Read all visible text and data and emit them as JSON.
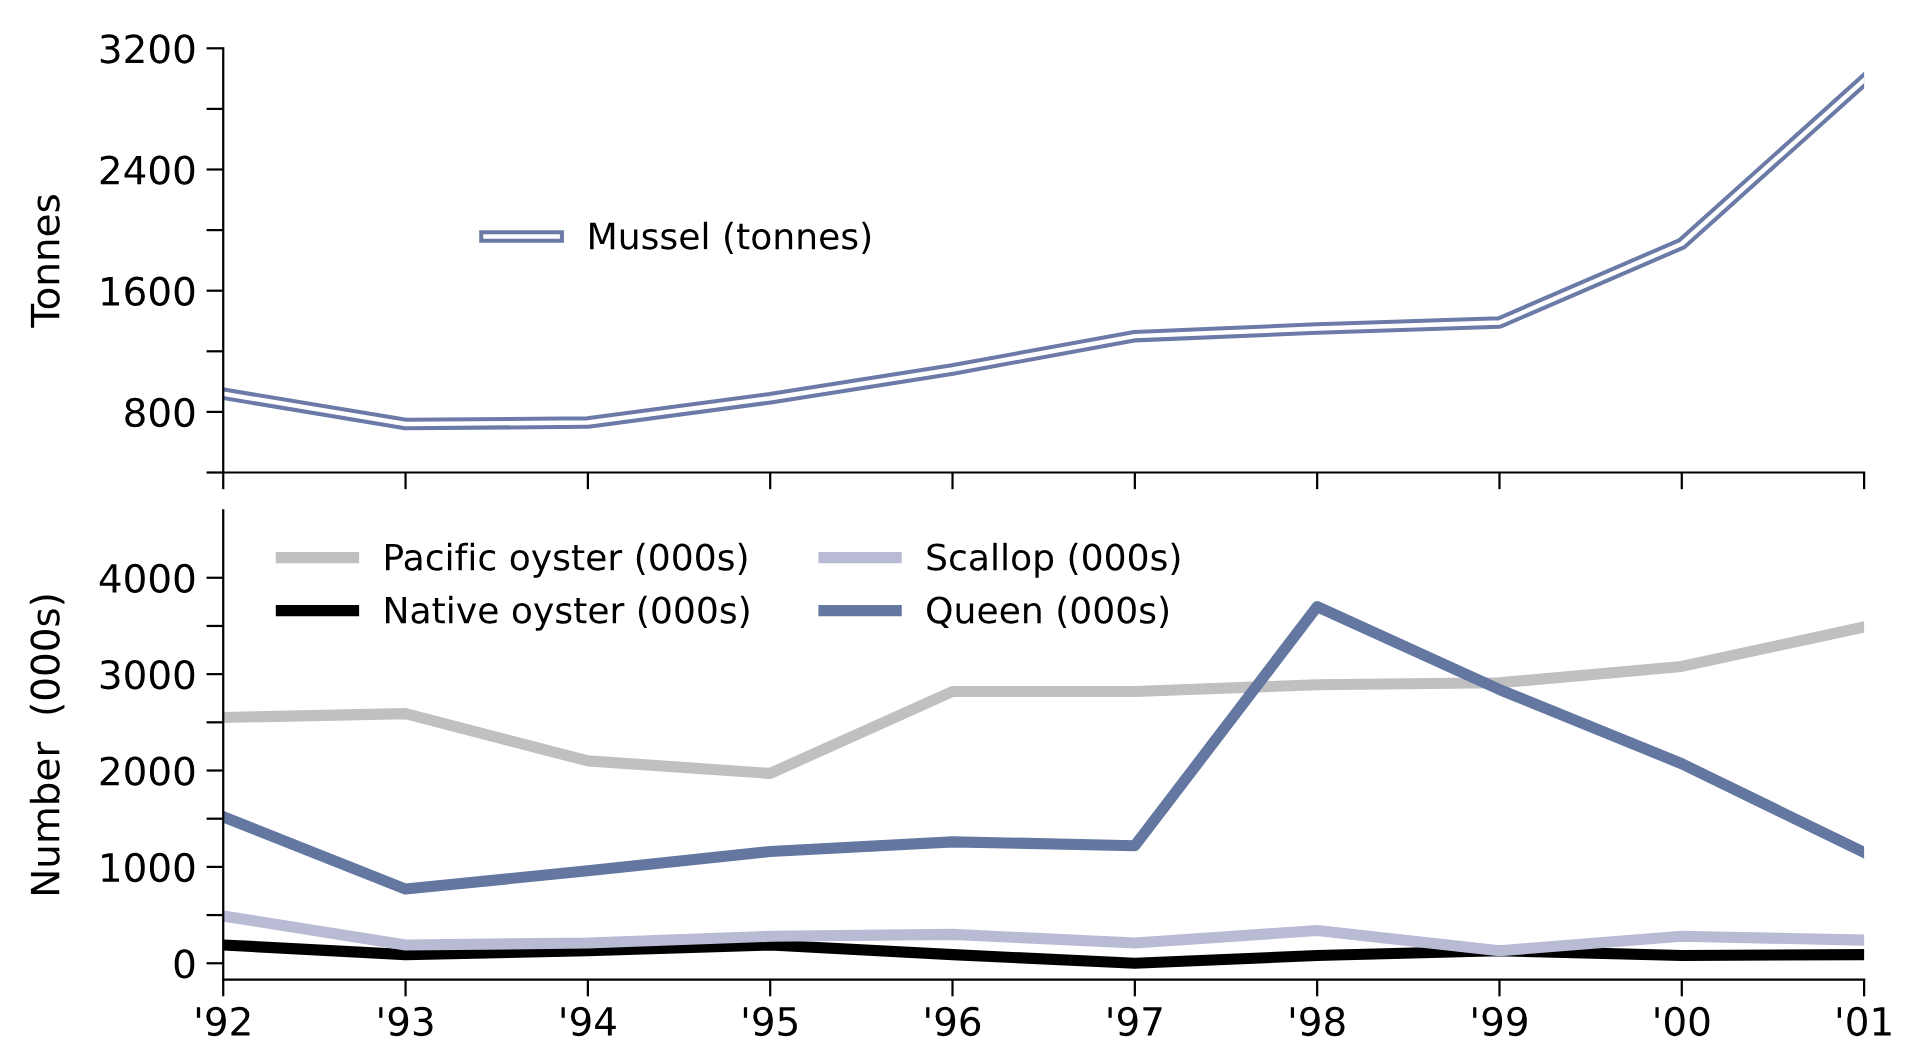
{
  "chart_data": [
    {
      "type": "line",
      "ylabel": "Tonnes",
      "categories": [
        null,
        null,
        null,
        null,
        null,
        null,
        null,
        null,
        null,
        null
      ],
      "ylim": [
        400,
        3200
      ],
      "yticks": [
        {
          "value": 400,
          "label": null
        },
        800,
        {
          "value": 1200,
          "label": null
        },
        1600,
        {
          "value": 2000,
          "label": null
        },
        2400,
        {
          "value": 2800,
          "label": null
        },
        3200
      ],
      "tick_labels": "y",
      "legend": "left",
      "grid": false,
      "series": [
        {
          "name": "Mussel (tonnes)",
          "color": "#6b7aa6",
          "values": [
            920,
            720,
            730,
            890,
            1080,
            1300,
            1350,
            1390,
            1910,
            2990
          ]
        }
      ]
    },
    {
      "type": "line",
      "ylabel": "Number  (000s)",
      "categories": [
        "'92",
        "'93",
        "'94",
        "'95",
        "'96",
        "'97",
        "'98",
        "'99",
        "'00",
        "'01"
      ],
      "ylim": [
        -170,
        4700
      ],
      "yticks": [
        0,
        {
          "value": 500,
          "label": null
        },
        1000,
        {
          "value": 1500,
          "label": null
        },
        2000,
        {
          "value": 2500,
          "label": null
        },
        3000,
        {
          "value": 3500,
          "label": null
        },
        4000
      ],
      "legend": "top",
      "grid": false,
      "series": [
        {
          "name": "Pacific oyster (000s)",
          "color": "#c0c0c0",
          "values": [
            2550,
            2590,
            2100,
            1970,
            2820,
            2820,
            2890,
            2910,
            3080,
            3490
          ]
        },
        {
          "name": "Native oyster (000s)",
          "color": "#000000",
          "values": [
            190,
            90,
            130,
            190,
            90,
            0,
            80,
            130,
            80,
            90
          ]
        },
        {
          "name": "Scallop (000s)",
          "color": "#b9bbd4",
          "values": [
            490,
            190,
            210,
            280,
            300,
            210,
            340,
            130,
            280,
            240
          ]
        },
        {
          "name": "Queen (000s)",
          "color": "#6477a0",
          "values": [
            1520,
            770,
            960,
            1160,
            1260,
            1220,
            3700,
            2840,
            2070,
            1150
          ]
        }
      ]
    }
  ]
}
